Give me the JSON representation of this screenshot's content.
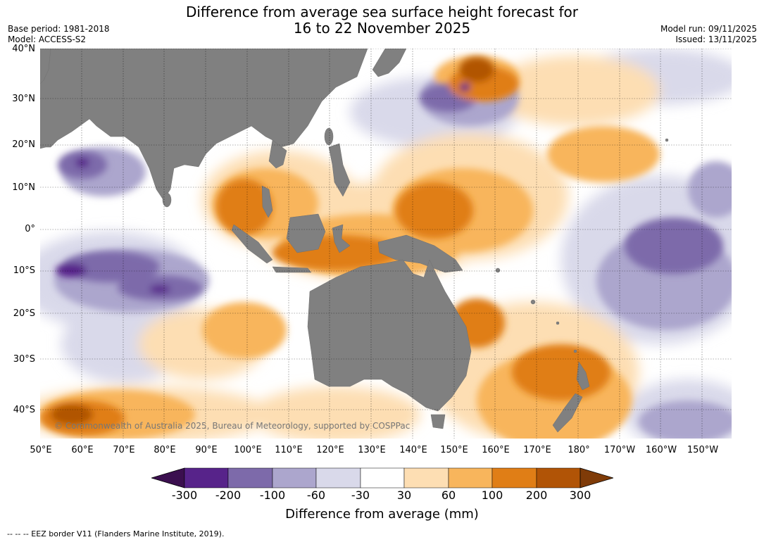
{
  "title": {
    "line1": "Difference from average sea surface height forecast for",
    "line2": "16 to 22 November 2025"
  },
  "meta": {
    "base_period": "Base period: 1981-2018",
    "model": "Model: ACCESS-S2",
    "model_run": "Model run: 09/11/2025",
    "issued": "Issued: 13/11/2025"
  },
  "map": {
    "latitude_labels": [
      "40°N",
      "30°N",
      "20°N",
      "10°N",
      "0°",
      "10°S",
      "20°S",
      "30°S",
      "40°S"
    ],
    "longitude_labels": [
      "50°E",
      "60°E",
      "70°E",
      "80°E",
      "90°E",
      "100°E",
      "110°E",
      "120°E",
      "130°E",
      "140°E",
      "150°E",
      "160°E",
      "170°E",
      "180°",
      "170°W",
      "160°W",
      "150°W"
    ],
    "copyright": "© Commonwealth of Australia 2025, Bureau of Meteorology, supported by COSPPac",
    "land_color": "#808080"
  },
  "colorbar": {
    "ticks": [
      "-300",
      "-200",
      "-100",
      "-60",
      "-30",
      "30",
      "60",
      "100",
      "200",
      "300"
    ],
    "colors": [
      "#3b0f4f",
      "#57238a",
      "#7d6aaa",
      "#aca6cd",
      "#d9d9ea",
      "#ffffff",
      "#fddeb3",
      "#f8b55c",
      "#e07e16",
      "#b15406",
      "#7f3b08"
    ],
    "label": "Difference from average (mm)"
  },
  "footnote": "--  --  -- EEZ border V11 (Flanders Marine Institute, 2019)."
}
